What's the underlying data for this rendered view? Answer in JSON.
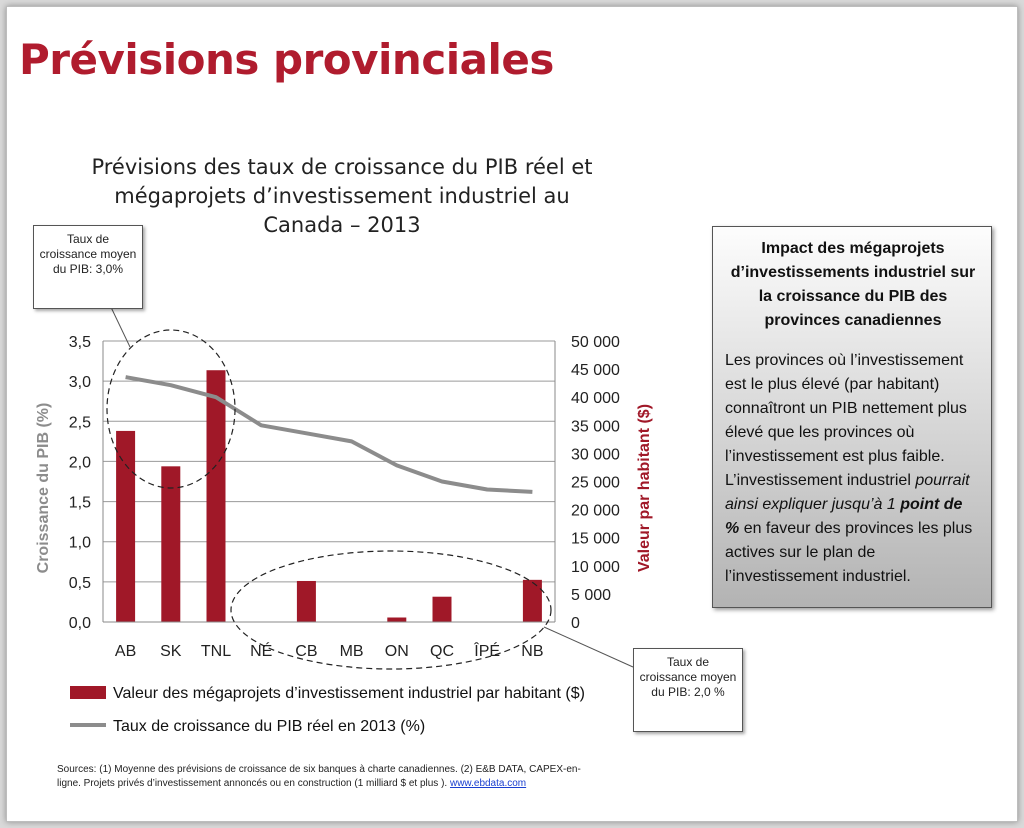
{
  "page": {
    "title": "Prévisions provinciales"
  },
  "chart_data": {
    "type": "bar+line",
    "title_lines": [
      "Prévisions des taux de croissance du PIB réel et",
      "mégaprojets d’investissement industriel au",
      "Canada – 2013"
    ],
    "categories": [
      "AB",
      "SK",
      "TNL",
      "NÉ",
      "CB",
      "MB",
      "ON",
      "QC",
      "ÎPÉ",
      "NB"
    ],
    "series": [
      {
        "name": "Valeur des mégaprojets d’investissement industriel par habitant ($)",
        "type": "bar",
        "axis": "right",
        "color": "#a01828",
        "values": [
          34000,
          27700,
          44800,
          0,
          7300,
          0,
          800,
          4500,
          0,
          7500
        ]
      },
      {
        "name": "Taux de croissance du PIB réel en 2013 (%)",
        "type": "line",
        "axis": "left",
        "color": "#8c8c8c",
        "values": [
          3.05,
          2.95,
          2.8,
          2.45,
          2.35,
          2.25,
          1.95,
          1.75,
          1.65,
          1.62
        ]
      }
    ],
    "y_left": {
      "label": "Croissance du PIB (%)",
      "ylim": [
        0,
        3.5
      ],
      "ticks": [
        "0,0",
        "0,5",
        "1,0",
        "1,5",
        "2,0",
        "2,5",
        "3,0",
        "3,5"
      ],
      "color": "#8c8c8c"
    },
    "y_right": {
      "label": "Valeur par habitant ($)",
      "ylim": [
        0,
        50000
      ],
      "ticks": [
        "0",
        "5 000",
        "10 000",
        "15 000",
        "20 000",
        "25 000",
        "30 000",
        "35 000",
        "40 000",
        "45 000",
        "50 000"
      ],
      "color": "#a01828"
    },
    "grid": "horizontal",
    "legend_position": "bottom"
  },
  "callouts": {
    "left": "Taux de croissance moyen du PIB: 3,0%",
    "right": "Taux de croissance moyen du PIB: 2,0 %"
  },
  "info_box": {
    "title": "Impact des mégaprojets d’investissements industriel sur la croissance du PIB des provinces canadiennes",
    "body_start": "Les provinces où l’investissement est le plus élevé (par habitant) connaîtront un PIB nettement plus élevé que les provinces où l’investissement est plus faible. L’investissement industriel",
    "body_italic": "pourrait ainsi expliquer jusqu’à 1",
    "body_bold_italic": "point de %",
    "body_end": "en faveur des provinces les plus actives sur le plan de l’investissement industriel."
  },
  "sources": {
    "text": "Sources: (1) Moyenne des prévisions de croissance de six banques à charte canadiennes. (2) E&B DATA, CAPEX-en-ligne. Projets privés d’investissement annoncés ou en construction (1 milliard $ et plus ).",
    "link": "www.ebdata.com"
  }
}
